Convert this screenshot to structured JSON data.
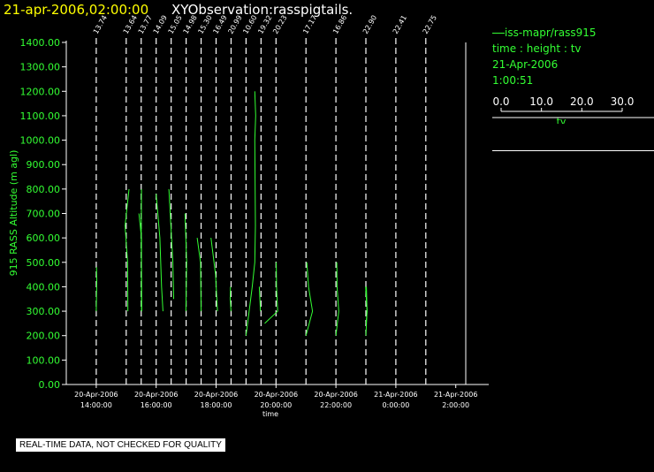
{
  "header": {
    "date_time": "21-apr-2006,02:00:00",
    "observation": "XYObservation:rasspigtails."
  },
  "legend": {
    "series": "iss-mapr/rass915",
    "mapping": "time : height : tv",
    "date": "21-Apr-2006",
    "time": "1:00:51",
    "scale_ticks": [
      "0.0",
      "10.0",
      "20.0",
      "30.0"
    ],
    "scale_label": "tv"
  },
  "disclaimer": "REAL-TIME DATA, NOT CHECKED FOR QUALITY",
  "colors": {
    "series": "#33ff33",
    "axis_text": "#33ff33",
    "axes": "#ffffff",
    "title": "#ffff00"
  },
  "chart_data": {
    "type": "line",
    "xlabel": "time",
    "ylabel": "915 RASS Altitude (m agl)",
    "x_range": [
      "2006-04-20 13:00",
      "2006-04-21 02:20"
    ],
    "ylim": [
      0,
      1400
    ],
    "y_ticks": [
      0,
      100,
      200,
      300,
      400,
      500,
      600,
      700,
      800,
      900,
      1000,
      1100,
      1200,
      1300,
      1400
    ],
    "y_tick_labels": [
      "0.00",
      "100.00",
      "200.00",
      "300.00",
      "400.00",
      "500.00",
      "600.00",
      "700.00",
      "800.00",
      "900.00",
      "1000.00",
      "1100.00",
      "1200.00",
      "1300.00",
      "1400.00"
    ],
    "x_ticks": [
      {
        "value": "2006-04-20 14:00",
        "date": "20-Apr-2006",
        "time": "14:00:00"
      },
      {
        "value": "2006-04-20 16:00",
        "date": "20-Apr-2006",
        "time": "16:00:00"
      },
      {
        "value": "2006-04-20 18:00",
        "date": "20-Apr-2006",
        "time": "18:00:00"
      },
      {
        "value": "2006-04-20 20:00",
        "date": "20-Apr-2006",
        "time": "20:00:00"
      },
      {
        "value": "2006-04-20 22:00",
        "date": "20-Apr-2006",
        "time": "22:00:00"
      },
      {
        "value": "2006-04-21 00:00",
        "date": "21-Apr-2006",
        "time": "0:00:00"
      },
      {
        "value": "2006-04-21 02:00",
        "date": "21-Apr-2006",
        "time": "2:00:00"
      }
    ],
    "profiles": [
      {
        "time": "2006-04-20 14:00",
        "label": "13.74",
        "points": [
          [
            0.0,
            300
          ],
          [
            0.2,
            420
          ],
          [
            0.1,
            480
          ]
        ]
      },
      {
        "time": "2006-04-20 15:00",
        "label": "13.64",
        "points": [
          [
            1.0,
            800
          ],
          [
            -0.4,
            650
          ],
          [
            0.5,
            500
          ],
          [
            0.6,
            300
          ]
        ]
      },
      {
        "time": "2006-04-20 15:30",
        "label": "13.77",
        "points": [
          [
            -0.8,
            700
          ],
          [
            0.1,
            600
          ],
          [
            0.1,
            450
          ],
          [
            0.1,
            300
          ]
        ]
      },
      {
        "time": "2006-04-20 15:30",
        "label": "13.77",
        "points": [
          [
            0.1,
            800
          ],
          [
            0.0,
            600
          ],
          [
            0.2,
            300
          ]
        ]
      },
      {
        "time": "2006-04-20 16:00",
        "label": "14.09",
        "points": [
          [
            0.0,
            780
          ],
          [
            1.3,
            600
          ],
          [
            1.9,
            400
          ],
          [
            2.4,
            300
          ]
        ]
      },
      {
        "time": "2006-04-20 16:30",
        "label": "15.05",
        "points": [
          [
            -0.8,
            800
          ],
          [
            0.6,
            500
          ],
          [
            0.9,
            350
          ]
        ]
      },
      {
        "time": "2006-04-20 17:00",
        "label": "14.98",
        "points": [
          [
            -0.4,
            700
          ],
          [
            0.2,
            500
          ],
          [
            -0.1,
            300
          ]
        ]
      },
      {
        "time": "2006-04-20 17:30",
        "label": "15.30",
        "points": [
          [
            -1.4,
            600
          ],
          [
            -0.2,
            500
          ],
          [
            0.0,
            300
          ]
        ]
      },
      {
        "time": "2006-04-20 18:00",
        "label": "16.49",
        "points": [
          [
            -1.8,
            600
          ],
          [
            -0.2,
            450
          ],
          [
            0.5,
            300
          ]
        ]
      },
      {
        "time": "2006-04-20 18:30",
        "label": "20.99",
        "points": [
          [
            -0.2,
            400
          ],
          [
            -0.3,
            350
          ],
          [
            0.0,
            300
          ]
        ]
      },
      {
        "time": "2006-04-20 19:00",
        "label": "10.60",
        "points": [
          [
            3.1,
            1200
          ],
          [
            3.4,
            1100
          ],
          [
            3.1,
            1000
          ],
          [
            3.3,
            650
          ],
          [
            3.1,
            500
          ],
          [
            2.2,
            400
          ],
          [
            0.0,
            200
          ]
        ]
      },
      {
        "time": "2006-04-20 19:30",
        "label": "19.32",
        "points": [
          [
            -0.6,
            400
          ],
          [
            -0.2,
            300
          ]
        ]
      },
      {
        "time": "2006-04-20 20:00",
        "label": "20.23",
        "points": [
          [
            0.1,
            500
          ],
          [
            0.2,
            400
          ],
          [
            0.6,
            300
          ],
          [
            -4.0,
            250
          ]
        ]
      },
      {
        "time": "2006-04-20 21:00",
        "label": "17.17",
        "points": [
          [
            0.3,
            500
          ],
          [
            0.9,
            400
          ],
          [
            2.3,
            300
          ],
          [
            0.0,
            200
          ]
        ]
      },
      {
        "time": "2006-04-20 22:00",
        "label": "16.86",
        "points": [
          [
            0.3,
            500
          ],
          [
            0.4,
            400
          ],
          [
            1.0,
            300
          ],
          [
            0.0,
            200
          ]
        ]
      },
      {
        "time": "2006-04-20 23:00",
        "label": "22.90",
        "points": [
          [
            -0.1,
            400
          ],
          [
            0.4,
            300
          ],
          [
            0.0,
            200
          ]
        ]
      },
      {
        "time": "2006-04-20 23:00",
        "label": "22.90",
        "points": [
          [
            0.2,
            400
          ],
          [
            0.4,
            300
          ],
          [
            0.1,
            250
          ]
        ]
      },
      {
        "time": "2006-04-21 00:00",
        "label": "22.41",
        "points": []
      },
      {
        "time": "2006-04-21 01:00",
        "label": "22.75",
        "points": []
      }
    ]
  }
}
